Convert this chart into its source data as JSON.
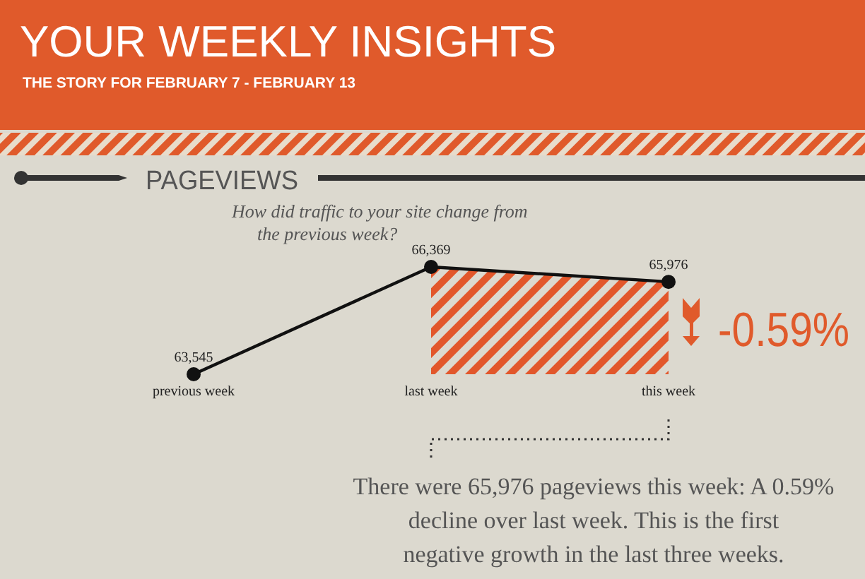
{
  "chart_data": {
    "type": "line",
    "title": "YOUR WEEKLY INSIGHTS",
    "subtitle": "THE STORY FOR FEBRUARY 7 - FEBRUARY 13",
    "categories": [
      "previous week",
      "last week",
      "this week"
    ],
    "series": [
      {
        "type": "area",
        "color": "#e2572b",
        "values": [
          null,
          66369,
          65976
        ]
      },
      {
        "type": "line",
        "color": "#111111",
        "marker": "circle",
        "values": [
          63545,
          66369,
          65976
        ],
        "value_labels": [
          "63,545",
          "66,369",
          "65,976"
        ]
      }
    ],
    "tick_labels": "x",
    "annotations": [
      "PAGEVIEWS",
      "How did traffic to your site change from the previous week?",
      "-0.59%",
      "There were 65,976 pageviews this week: A 0.59% decline over last week. This is the first negative growth in the last three weeks."
    ]
  }
}
